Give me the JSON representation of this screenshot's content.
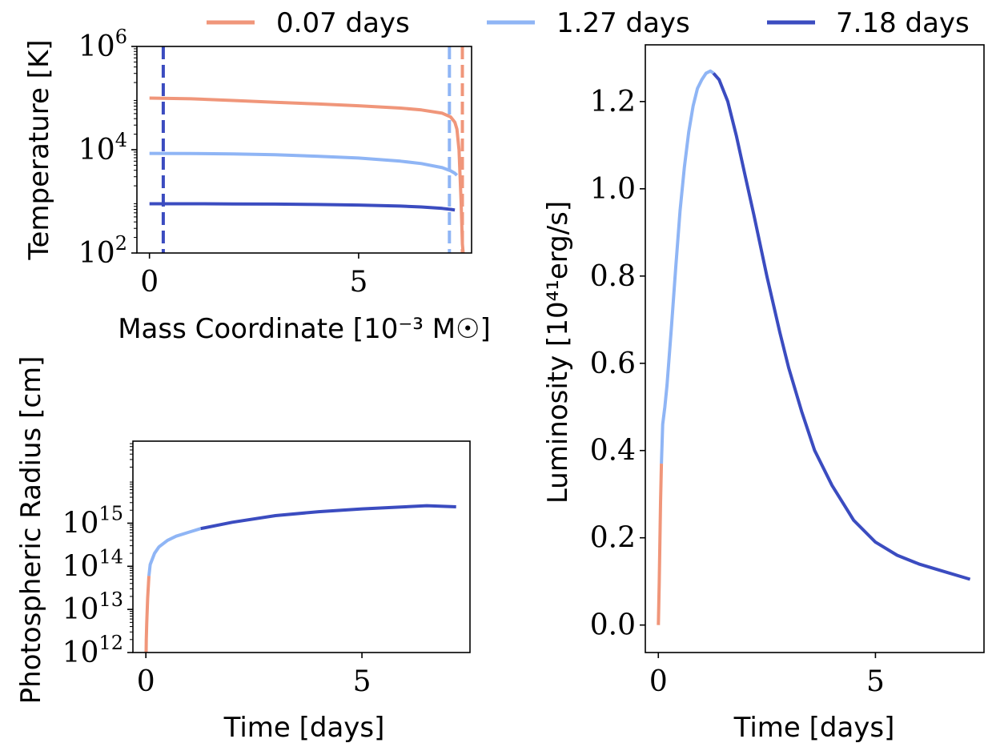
{
  "legend": {
    "entries": [
      {
        "label": "0.07 days",
        "color": "#f0967a"
      },
      {
        "label": "1.27 days",
        "color": "#8fb5f5"
      },
      {
        "label": "7.18 days",
        "color": "#3b4cc0"
      }
    ]
  },
  "chart_data": [
    {
      "id": "temperature",
      "type": "line",
      "xlabel": "Mass Coordinate [10⁻³ M☉]",
      "ylabel": "Temperature [K]",
      "xlim": [
        -0.3,
        7.7
      ],
      "ylim": [
        100,
        1000000
      ],
      "yscale": "log",
      "xticks": [
        {
          "v": 0,
          "label": "0"
        },
        {
          "v": 5,
          "label": "5"
        }
      ],
      "yticks": [
        {
          "v": 100,
          "base": "10",
          "exp": "2"
        },
        {
          "v": 10000,
          "base": "10",
          "exp": "4"
        },
        {
          "v": 1000000,
          "base": "10",
          "exp": "6"
        }
      ],
      "series": [
        {
          "name": "0.07 days",
          "color": "#f0967a",
          "x": [
            0,
            1,
            2,
            3,
            4,
            5,
            6,
            6.5,
            7,
            7.2,
            7.3,
            7.35,
            7.4,
            7.45,
            7.48,
            7.5
          ],
          "y": [
            100000,
            97000,
            90000,
            83000,
            77000,
            71000,
            64000,
            59000,
            51000,
            43000,
            34000,
            25000,
            10000,
            1000,
            150,
            100
          ]
        },
        {
          "name": "1.27 days",
          "color": "#8fb5f5",
          "x": [
            0,
            1,
            2,
            3,
            4,
            5,
            6,
            6.5,
            7,
            7.2,
            7.3,
            7.35
          ],
          "y": [
            8500,
            8450,
            8300,
            8000,
            7500,
            6900,
            6000,
            5400,
            4500,
            3900,
            3500,
            3200
          ]
        },
        {
          "name": "7.18 days",
          "color": "#3b4cc0",
          "x": [
            0,
            1,
            2,
            3,
            4,
            5,
            6,
            6.5,
            7,
            7.2,
            7.3
          ],
          "y": [
            900,
            898,
            893,
            885,
            870,
            848,
            810,
            780,
            730,
            700,
            680
          ]
        }
      ],
      "vlines": [
        {
          "x": 0.33,
          "color": "#3b4cc0"
        },
        {
          "x": 7.17,
          "color": "#8fb5f5"
        },
        {
          "x": 7.48,
          "color": "#f0967a"
        }
      ]
    },
    {
      "id": "radius",
      "type": "line",
      "xlabel": "Time [days]",
      "ylabel": "Photospheric Radius [cm]",
      "xlim": [
        -0.3,
        7.5
      ],
      "ylim": [
        1000000000000,
        80000000000000000
      ],
      "yscale": "log",
      "xticks": [
        {
          "v": 0,
          "label": "0"
        },
        {
          "v": 5,
          "label": "5"
        }
      ],
      "yticks": [
        {
          "v": 1000000000000,
          "base": "10",
          "exp": "12"
        },
        {
          "v": 10000000000000,
          "base": "10",
          "exp": "13"
        },
        {
          "v": 100000000000000,
          "base": "10",
          "exp": "14"
        },
        {
          "v": 1000000000000000,
          "base": "10",
          "exp": "15"
        }
      ],
      "series": [
        {
          "name": "0.07 days",
          "color": "#f0967a",
          "x": [
            0.005,
            0.01,
            0.02,
            0.04,
            0.07
          ],
          "y": [
            1000000000000,
            2000000000000,
            5000000000000,
            18000000000000,
            60000000000000
          ]
        },
        {
          "name": "1.27 days",
          "color": "#8fb5f5",
          "x": [
            0.07,
            0.1,
            0.2,
            0.3,
            0.5,
            0.7,
            1.0,
            1.27
          ],
          "y": [
            60000000000000,
            110000000000000,
            200000000000000,
            280000000000000,
            400000000000000,
            500000000000000,
            620000000000000,
            750000000000000
          ]
        },
        {
          "name": "7.18 days",
          "color": "#3b4cc0",
          "x": [
            1.27,
            2,
            3,
            4,
            5,
            6,
            6.5,
            7.18
          ],
          "y": [
            750000000000000,
            1050000000000000,
            1500000000000000,
            1850000000000000,
            2150000000000000,
            2400000000000000,
            2550000000000000,
            2400000000000000
          ]
        }
      ]
    },
    {
      "id": "luminosity",
      "type": "line",
      "xlabel": "Time [days]",
      "ylabel": "Luminosity [10⁴¹erg/s]",
      "xlim": [
        -0.3,
        7.5
      ],
      "ylim": [
        -0.063,
        1.33
      ],
      "yscale": "linear",
      "xticks": [
        {
          "v": 0,
          "label": "0"
        },
        {
          "v": 5,
          "label": "5"
        }
      ],
      "yticks": [
        {
          "v": 0,
          "label": "0.0"
        },
        {
          "v": 0.2,
          "label": "0.2"
        },
        {
          "v": 0.4,
          "label": "0.4"
        },
        {
          "v": 0.6,
          "label": "0.6"
        },
        {
          "v": 0.8,
          "label": "0.8"
        },
        {
          "v": 1.0,
          "label": "1.0"
        },
        {
          "v": 1.2,
          "label": "1.2"
        }
      ],
      "series": [
        {
          "name": "0.07 days",
          "color": "#f0967a",
          "x": [
            0.0,
            0.02,
            0.05,
            0.07
          ],
          "y": [
            0.0,
            0.1,
            0.28,
            0.37
          ]
        },
        {
          "name": "1.27 days",
          "color": "#8fb5f5",
          "x": [
            0.07,
            0.1,
            0.15,
            0.2,
            0.3,
            0.4,
            0.5,
            0.6,
            0.7,
            0.8,
            0.9,
            1.0,
            1.1,
            1.2,
            1.27
          ],
          "y": [
            0.37,
            0.46,
            0.5,
            0.55,
            0.68,
            0.82,
            0.95,
            1.05,
            1.13,
            1.19,
            1.23,
            1.25,
            1.265,
            1.27,
            1.265
          ]
        },
        {
          "name": "7.18 days",
          "color": "#3b4cc0",
          "x": [
            1.27,
            1.4,
            1.6,
            1.8,
            2.0,
            2.2,
            2.5,
            2.8,
            3.0,
            3.3,
            3.6,
            4.0,
            4.5,
            5.0,
            5.5,
            6.0,
            6.5,
            7.18
          ],
          "y": [
            1.265,
            1.25,
            1.2,
            1.12,
            1.03,
            0.94,
            0.8,
            0.67,
            0.59,
            0.49,
            0.4,
            0.32,
            0.24,
            0.19,
            0.16,
            0.14,
            0.125,
            0.105
          ]
        }
      ]
    }
  ]
}
